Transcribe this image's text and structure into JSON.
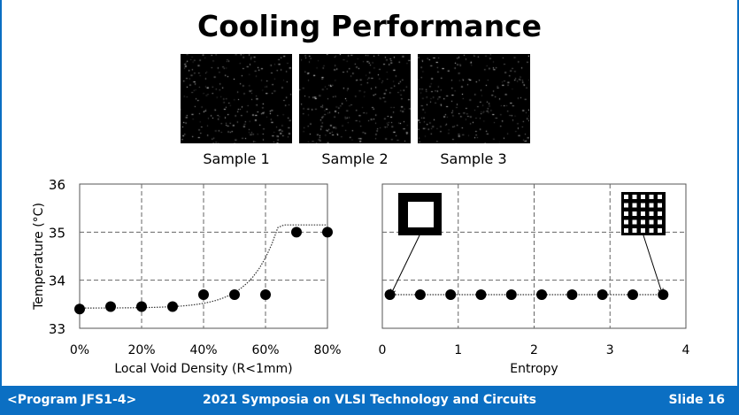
{
  "slide": {
    "title": "Cooling Performance"
  },
  "samples": [
    {
      "label": "Sample 1"
    },
    {
      "label": "Sample 2"
    },
    {
      "label": "Sample 3"
    }
  ],
  "chart_data": [
    {
      "type": "scatter",
      "title": "",
      "xlabel": "Local Void Density (R<1mm)",
      "ylabel": "Temperature (°C)",
      "xlim": [
        0,
        80
      ],
      "ylim": [
        33,
        36
      ],
      "xticks": [
        "0%",
        "20%",
        "40%",
        "60%",
        "80%"
      ],
      "yticks": [
        "33",
        "34",
        "35",
        "36"
      ],
      "x": [
        0,
        10,
        20,
        30,
        40,
        50,
        60,
        70,
        80
      ],
      "y": [
        33.4,
        33.45,
        33.45,
        33.45,
        33.7,
        33.7,
        33.7,
        35.0,
        35.0
      ],
      "trendline": "exponential, dotted",
      "grid": true
    },
    {
      "type": "scatter",
      "title": "",
      "xlabel": "Entropy",
      "ylabel": "",
      "xlim": [
        0,
        4
      ],
      "ylim": [
        33,
        36
      ],
      "xticks": [
        "0",
        "1",
        "2",
        "3",
        "4"
      ],
      "x": [
        0.1,
        0.5,
        0.9,
        1.3,
        1.7,
        2.1,
        2.5,
        2.9,
        3.3,
        3.7
      ],
      "y": [
        33.7,
        33.7,
        33.7,
        33.7,
        33.7,
        33.7,
        33.7,
        33.7,
        33.7,
        33.7
      ],
      "trendline": "flat, dotted",
      "annotations": [
        "low-entropy pattern (single hollow square) at x=0.1",
        "high-entropy pattern (grid of squares) at x=3.7"
      ],
      "grid": true
    }
  ],
  "footer": {
    "program": "<Program JFS1-4>",
    "conference": "2021 Symposia on VLSI Technology and Circuits",
    "slide": "Slide 16"
  },
  "colors": {
    "footer": "#0b6fc3",
    "marker": "#000000"
  }
}
